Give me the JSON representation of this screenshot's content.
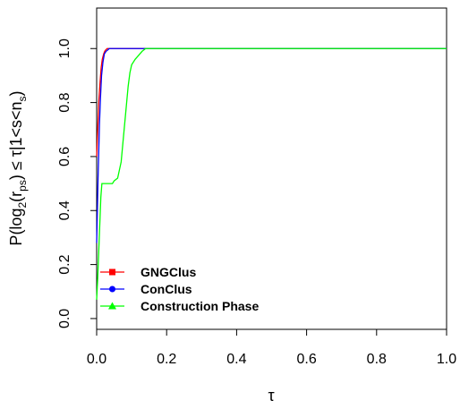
{
  "chart_data": {
    "type": "line",
    "title": "",
    "xlabel": "τ",
    "ylabel": {
      "prefix": "P(log",
      "base": "2",
      "mid": "(r",
      "sub": "ps",
      "suffix": ") ≤ τ|1<s<n",
      "sub2": "s",
      "end": ")"
    },
    "xlim": [
      0,
      1
    ],
    "ylim": [
      -0.04,
      1.15
    ],
    "xticks": [
      {
        "value": 0.0,
        "label": "0.0"
      },
      {
        "value": 0.2,
        "label": "0.2"
      },
      {
        "value": 0.4,
        "label": "0.4"
      },
      {
        "value": 0.6,
        "label": "0.6"
      },
      {
        "value": 0.8,
        "label": "0.8"
      },
      {
        "value": 1.0,
        "label": "1.0"
      }
    ],
    "yticks": [
      {
        "value": 0.0,
        "label": "0.0"
      },
      {
        "value": 0.2,
        "label": "0.2"
      },
      {
        "value": 0.4,
        "label": "0.4"
      },
      {
        "value": 0.6,
        "label": "0.6"
      },
      {
        "value": 0.8,
        "label": "0.8"
      },
      {
        "value": 1.0,
        "label": "1.0"
      }
    ],
    "grid": false,
    "legend_position": "bottom-left",
    "series": [
      {
        "name": "GNGClus",
        "color": "#ff0000",
        "marker": "square",
        "x": [
          0,
          0.003,
          0.006,
          0.01,
          0.013,
          0.016,
          0.02,
          0.023,
          0.026,
          0.03,
          1.0
        ],
        "y": [
          0.6,
          0.7,
          0.8,
          0.88,
          0.93,
          0.96,
          0.98,
          0.99,
          0.995,
          1.0,
          1.0
        ]
      },
      {
        "name": "ConClus",
        "color": "#0000ff",
        "marker": "circle",
        "x": [
          0,
          0.002,
          0.004,
          0.006,
          0.008,
          0.011,
          0.014,
          0.018,
          0.022,
          0.027,
          0.032,
          0.036,
          1.0
        ],
        "y": [
          0.28,
          0.4,
          0.52,
          0.62,
          0.72,
          0.82,
          0.9,
          0.95,
          0.98,
          0.99,
          0.995,
          1.0,
          1.0
        ]
      },
      {
        "name": "Construction Phase",
        "color": "#00ff00",
        "marker": "triangle",
        "x": [
          0,
          0.003,
          0.006,
          0.009,
          0.012,
          0.015,
          0.045,
          0.05,
          0.06,
          0.07,
          0.075,
          0.08,
          0.085,
          0.09,
          0.095,
          0.1,
          0.11,
          0.12,
          0.13,
          0.14,
          1.0
        ],
        "y": [
          0.07,
          0.15,
          0.25,
          0.35,
          0.45,
          0.5,
          0.5,
          0.51,
          0.52,
          0.58,
          0.65,
          0.72,
          0.79,
          0.86,
          0.91,
          0.94,
          0.96,
          0.975,
          0.99,
          1.0,
          1.0
        ]
      }
    ]
  }
}
